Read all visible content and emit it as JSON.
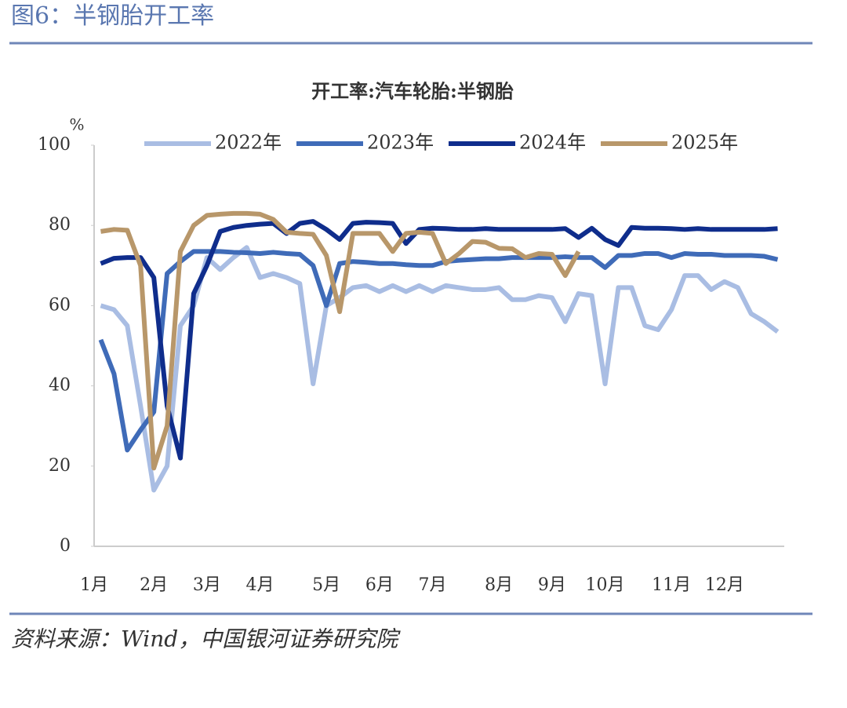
{
  "header": {
    "figure_title": "图6：半钢胎开工率"
  },
  "chart_data": {
    "type": "line",
    "title": "开工率:汽车轮胎:半钢胎",
    "y_unit": "%",
    "categories": [
      "1月",
      null,
      null,
      null,
      "2月",
      null,
      null,
      null,
      "3月",
      null,
      null,
      null,
      "4月",
      null,
      null,
      null,
      null,
      "5月",
      null,
      null,
      null,
      "6月",
      null,
      null,
      null,
      "7月",
      null,
      null,
      null,
      null,
      "8月",
      null,
      null,
      null,
      "9月",
      null,
      null,
      null,
      "10月",
      null,
      null,
      null,
      null,
      "11月",
      null,
      null,
      null,
      "12月",
      null,
      null,
      null,
      null
    ],
    "series": [
      {
        "name": "2022年",
        "color": "#a9bde3",
        "values": [
          60,
          59,
          55,
          35,
          14,
          20,
          55,
          60,
          72,
          69,
          72,
          74.5,
          67,
          68,
          67,
          65.5,
          40.5,
          60,
          62,
          64.5,
          65,
          63.5,
          65,
          63.5,
          65,
          63.5,
          65,
          64.5,
          64,
          64,
          64.5,
          61.5,
          61.5,
          62.5,
          62,
          56,
          63,
          62.5,
          40.5,
          64.5,
          64.5,
          55,
          54,
          59,
          67.5,
          67.5,
          64,
          66,
          64.5,
          58,
          56,
          53.5
        ]
      },
      {
        "name": "2023年",
        "color": "#3f6bb8",
        "values": [
          51.5,
          43,
          24,
          29,
          33.5,
          68,
          71,
          73.5,
          73.5,
          73.5,
          73.3,
          73.2,
          73,
          73.3,
          73,
          72.8,
          70,
          60,
          70.5,
          71,
          70.8,
          70.5,
          70.5,
          70.2,
          70,
          70,
          71,
          71.3,
          71.5,
          71.7,
          71.7,
          72,
          72,
          72,
          72,
          72.2,
          72,
          72,
          69.5,
          72.5,
          72.5,
          73,
          73,
          72,
          73,
          72.8,
          72.8,
          72.5,
          72.5,
          72.5,
          72.3,
          71.5
        ]
      },
      {
        "name": "2024年",
        "color": "#0f2d8c",
        "values": [
          70.5,
          71.8,
          72,
          72,
          67,
          35,
          22,
          63,
          70,
          78.5,
          79.5,
          80,
          80.3,
          80.5,
          78,
          80.5,
          81,
          79,
          76.5,
          80.5,
          80.8,
          80.7,
          80.5,
          75.5,
          79,
          79.3,
          79.2,
          79,
          79,
          79.2,
          79,
          79,
          79,
          79,
          79,
          79.2,
          77,
          79.3,
          76.5,
          75,
          79.5,
          79.3,
          79.3,
          79.2,
          79,
          79.2,
          79,
          79,
          79,
          79,
          79,
          79.2
        ]
      },
      {
        "name": "2025年",
        "color": "#b8976a",
        "values": [
          78.5,
          79,
          78.8,
          70,
          19.5,
          30,
          73.5,
          80,
          82.5,
          82.8,
          83,
          83,
          82.8,
          81.5,
          78.3,
          78,
          77.8,
          72.5,
          58.5,
          78,
          78,
          78,
          73.5,
          78,
          78.3,
          78,
          70.5,
          73,
          76,
          75.8,
          74.3,
          74.2,
          72,
          73,
          72.8,
          67.5,
          73.5,
          null,
          null,
          null,
          null,
          null,
          null,
          null,
          null,
          null,
          null,
          null,
          null,
          null,
          null,
          null
        ]
      }
    ],
    "ylim": [
      0,
      100
    ],
    "yticks": [
      0,
      20,
      40,
      60,
      80,
      100
    ]
  },
  "footer": {
    "source": "资料来源：Wind，中国银河证券研究院"
  }
}
